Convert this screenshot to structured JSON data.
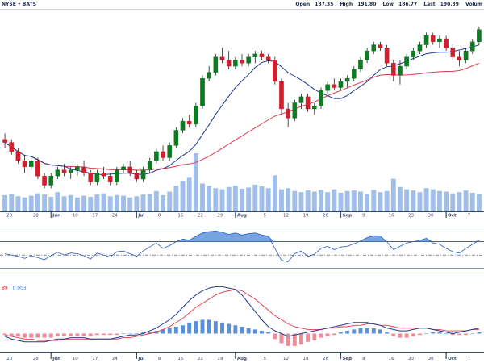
{
  "header": {
    "exchange": "NYSE • BATS",
    "open_label": "Open",
    "open": "187.35",
    "high_label": "High",
    "high": "191.80",
    "low_label": "Low",
    "low": "186.77",
    "close_label": "Last",
    "close": "190.39",
    "volume_label": "Volum"
  },
  "macd_legend": {
    "macd_value": "89",
    "signal_value": "0.903"
  },
  "colors": {
    "up": "#0f7a22",
    "down": "#d0202e",
    "wick": "#222222",
    "ma_fast": "#1f3a93",
    "ma_slow": "#e0394a",
    "volume": "#9fbfe8",
    "rsi": "#2b5fbf",
    "rsi_fill": "#4a86d8",
    "hist_pos": "#5b8fd9",
    "hist_neg": "#f08a96",
    "grid": "#e6e9ef",
    "axis": "#3a4a6a"
  },
  "chart_data": [
    {
      "type": "candlestick",
      "panel": "price",
      "x_tick_labels": [
        "20",
        "28",
        "Jun",
        "10",
        "17",
        "24",
        "Jul",
        "8",
        "15",
        "22",
        "29",
        "Aug",
        "5",
        "12",
        "19",
        "26",
        "Sep",
        "9",
        "16",
        "23",
        "30",
        "Oct",
        "7"
      ],
      "series": [
        {
          "name": "candles",
          "values": [
            [
              62,
              64,
              59,
              61
            ],
            [
              61,
              62,
              57,
              58
            ],
            [
              58,
              59,
              54,
              55
            ],
            [
              55,
              57,
              51,
              53
            ],
            [
              53,
              56,
              52,
              55
            ],
            [
              55,
              56,
              49,
              50
            ],
            [
              50,
              51,
              46,
              47
            ],
            [
              47,
              51,
              46,
              50
            ],
            [
              50,
              53,
              49,
              52
            ],
            [
              52,
              54,
              50,
              51
            ],
            [
              51,
              53,
              49,
              52
            ],
            [
              52,
              54,
              50,
              53
            ],
            [
              53,
              55,
              50,
              51
            ],
            [
              51,
              52,
              47,
              48
            ],
            [
              48,
              52,
              47,
              51
            ],
            [
              51,
              53,
              49,
              50
            ],
            [
              50,
              51,
              47,
              48
            ],
            [
              48,
              53,
              47,
              52
            ],
            [
              52,
              54,
              51,
              53
            ],
            [
              53,
              55,
              50,
              51
            ],
            [
              51,
              52,
              48,
              49
            ],
            [
              49,
              53,
              48,
              52
            ],
            [
              52,
              56,
              51,
              55
            ],
            [
              55,
              59,
              54,
              58
            ],
            [
              58,
              60,
              55,
              56
            ],
            [
              56,
              61,
              55,
              60
            ],
            [
              60,
              66,
              59,
              65
            ],
            [
              65,
              69,
              64,
              68
            ],
            [
              68,
              70,
              66,
              67
            ],
            [
              67,
              74,
              66,
              73
            ],
            [
              73,
              83,
              72,
              82
            ],
            [
              82,
              86,
              81,
              84
            ],
            [
              84,
              90,
              83,
              89
            ],
            [
              89,
              92,
              87,
              88
            ],
            [
              88,
              91,
              85,
              86
            ],
            [
              86,
              89,
              85,
              88
            ],
            [
              88,
              90,
              86,
              87
            ],
            [
              87,
              90,
              86,
              89
            ],
            [
              89,
              91,
              87,
              90
            ],
            [
              90,
              91,
              88,
              89
            ],
            [
              89,
              90,
              87,
              88
            ],
            [
              88,
              89,
              80,
              81
            ],
            [
              81,
              82,
              70,
              72
            ],
            [
              72,
              74,
              66,
              69
            ],
            [
              69,
              75,
              68,
              74
            ],
            [
              74,
              77,
              72,
              76
            ],
            [
              76,
              77,
              71,
              72
            ],
            [
              72,
              74,
              70,
              73
            ],
            [
              73,
              79,
              72,
              78
            ],
            [
              78,
              81,
              77,
              80
            ],
            [
              80,
              82,
              78,
              79
            ],
            [
              79,
              82,
              78,
              81
            ],
            [
              81,
              83,
              79,
              82
            ],
            [
              82,
              86,
              81,
              85
            ],
            [
              85,
              89,
              84,
              88
            ],
            [
              88,
              92,
              87,
              91
            ],
            [
              91,
              94,
              90,
              93
            ],
            [
              93,
              94,
              91,
              92
            ],
            [
              92,
              93,
              86,
              87
            ],
            [
              87,
              88,
              81,
              83
            ],
            [
              83,
              88,
              80,
              86
            ],
            [
              86,
              90,
              85,
              89
            ],
            [
              89,
              92,
              88,
              91
            ],
            [
              91,
              94,
              90,
              93
            ],
            [
              93,
              97,
              92,
              96
            ],
            [
              96,
              97,
              93,
              94
            ],
            [
              94,
              96,
              92,
              95
            ],
            [
              95,
              96,
              91,
              92
            ],
            [
              92,
              93,
              88,
              89
            ],
            [
              89,
              91,
              86,
              88
            ],
            [
              88,
              92,
              87,
              91
            ],
            [
              91,
              95,
              90,
              94
            ],
            [
              94,
              99,
              93,
              98
            ]
          ]
        },
        {
          "name": "ma_fast",
          "color_key": "ma_fast"
        },
        {
          "name": "ma_slow",
          "color_key": "ma_slow"
        }
      ],
      "volume": [
        28,
        30,
        26,
        24,
        27,
        31,
        29,
        25,
        33,
        26,
        28,
        24,
        27,
        25,
        29,
        31,
        26,
        28,
        27,
        24,
        26,
        29,
        30,
        35,
        28,
        34,
        44,
        52,
        58,
        100,
        48,
        44,
        40,
        38,
        42,
        44,
        39,
        41,
        46,
        43,
        40,
        62,
        38,
        40,
        35,
        33,
        36,
        34,
        37,
        33,
        38,
        32,
        35,
        36,
        34,
        30,
        37,
        33,
        35,
        56,
        42,
        38,
        36,
        33,
        40,
        38,
        35,
        34,
        31,
        33,
        36,
        32,
        30
      ]
    },
    {
      "type": "line",
      "panel": "rsi",
      "values": [
        52,
        50,
        48,
        45,
        49,
        46,
        43,
        49,
        54,
        50,
        53,
        52,
        49,
        44,
        53,
        50,
        47,
        55,
        56,
        52,
        48,
        56,
        62,
        68,
        60,
        64,
        70,
        74,
        72,
        78,
        83,
        85,
        86,
        84,
        81,
        83,
        80,
        82,
        83,
        80,
        78,
        60,
        42,
        40,
        52,
        56,
        48,
        51,
        60,
        63,
        58,
        62,
        63,
        67,
        71,
        76,
        79,
        78,
        70,
        58,
        63,
        68,
        70,
        72,
        75,
        68,
        66,
        60,
        55,
        53,
        60,
        66,
        72
      ]
    },
    {
      "type": "bar+line",
      "panel": "macd",
      "histogram": [
        -1,
        -2,
        -2,
        -3,
        -3,
        -3,
        -3,
        -3,
        -2,
        -2,
        -2,
        -2,
        -2,
        -2,
        -1,
        -1,
        -1,
        -1,
        0,
        0,
        0,
        1,
        1,
        2,
        3,
        4,
        5,
        6,
        8,
        9,
        10,
        10,
        9,
        8,
        7,
        6,
        5,
        4,
        3,
        2,
        1,
        -4,
        -7,
        -9,
        -9,
        -8,
        -6,
        -5,
        -3,
        -2,
        -1,
        1,
        2,
        3,
        4,
        4,
        4,
        3,
        1,
        -2,
        -3,
        -3,
        -2,
        -1,
        0,
        1,
        1,
        0,
        -1,
        -1,
        -1,
        0,
        1
      ],
      "macd": [
        -2,
        -4,
        -5,
        -6,
        -6,
        -6,
        -6,
        -5,
        -4,
        -4,
        -3,
        -3,
        -3,
        -4,
        -4,
        -4,
        -4,
        -3,
        -2,
        -1,
        -1,
        0,
        2,
        4,
        7,
        10,
        14,
        19,
        24,
        28,
        31,
        33,
        34,
        34,
        33,
        32,
        28,
        22,
        16,
        10,
        5,
        2,
        0,
        -2,
        -1,
        0,
        1,
        2,
        3,
        4,
        5,
        6,
        7,
        8,
        8,
        8,
        7,
        6,
        4,
        3,
        2,
        2,
        3,
        4,
        4,
        3,
        2,
        1,
        0,
        1,
        2,
        3,
        4
      ],
      "signal": [
        -1,
        -2,
        -3,
        -4,
        -4,
        -5,
        -5,
        -5,
        -5,
        -4,
        -4,
        -4,
        -4,
        -4,
        -4,
        -4,
        -4,
        -4,
        -3,
        -3,
        -2,
        -1,
        0,
        1,
        3,
        5,
        8,
        11,
        15,
        19,
        22,
        25,
        28,
        30,
        31,
        32,
        31,
        28,
        25,
        21,
        17,
        13,
        10,
        7,
        5,
        4,
        3,
        3,
        3,
        4,
        4,
        5,
        5,
        6,
        6,
        7,
        7,
        6,
        6,
        5,
        4,
        4,
        4,
        4,
        4,
        3,
        3,
        2,
        2,
        2,
        2,
        3,
        3
      ]
    }
  ]
}
